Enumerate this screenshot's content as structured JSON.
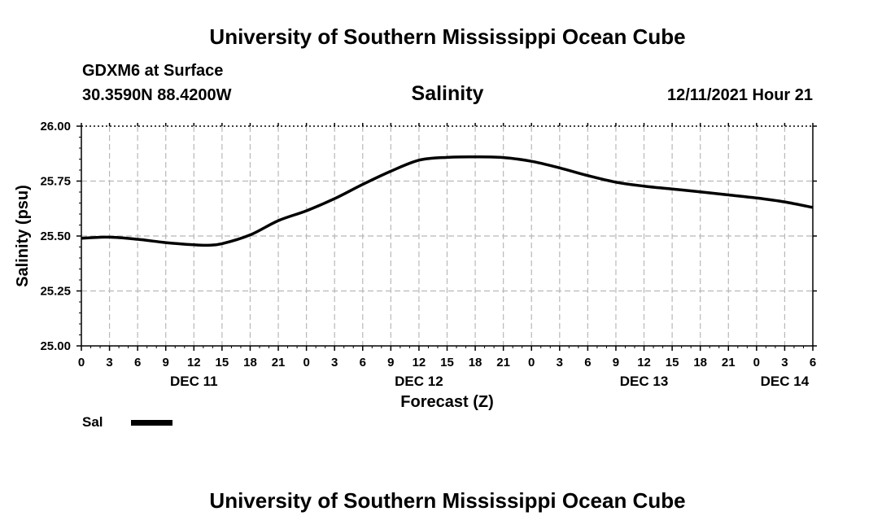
{
  "header": {
    "title_top": "University of Southern Mississippi Ocean Cube",
    "station": "GDXM6 at Surface",
    "coords": "30.3590N  88.4200W",
    "parameter": "Salinity",
    "run": "12/11/2021 Hour 21",
    "title_bottom": "University of Southern Mississippi Ocean Cube"
  },
  "legend": {
    "label": "Sal",
    "color": "#000000"
  },
  "chart_data": {
    "type": "line",
    "title": "Salinity",
    "xlabel": "Forecast (Z)",
    "ylabel": "Salinity (psu)",
    "ylim": [
      25.0,
      26.0
    ],
    "xlim": [
      0,
      78
    ],
    "grid": true,
    "yticks": [
      "25.00",
      "25.25",
      "25.50",
      "25.75",
      "26.00"
    ],
    "xtick_labels": [
      "0",
      "3",
      "6",
      "9",
      "12",
      "15",
      "18",
      "21",
      "0",
      "3",
      "6",
      "9",
      "12",
      "15",
      "18",
      "21",
      "0",
      "3",
      "6",
      "9",
      "12",
      "15",
      "18",
      "21",
      "0",
      "3",
      "6"
    ],
    "day_labels": [
      {
        "label": "DEC 11",
        "hour": 12
      },
      {
        "label": "DEC 12",
        "hour": 36
      },
      {
        "label": "DEC 13",
        "hour": 60
      },
      {
        "label": "DEC 14",
        "hour": 75
      }
    ],
    "series": [
      {
        "name": "Sal",
        "x": [
          0,
          3,
          6,
          9,
          12,
          13.5,
          15,
          18,
          21,
          24,
          27,
          30,
          33,
          36,
          39,
          42,
          45,
          48,
          51,
          54,
          57,
          60,
          63,
          66,
          69,
          72,
          75,
          78
        ],
        "values": [
          25.49,
          25.495,
          25.485,
          25.47,
          25.46,
          25.458,
          25.465,
          25.505,
          25.57,
          25.615,
          25.67,
          25.735,
          25.795,
          25.845,
          25.858,
          25.86,
          25.857,
          25.84,
          25.81,
          25.775,
          25.745,
          25.727,
          25.714,
          25.701,
          25.687,
          25.673,
          25.655,
          25.63
        ]
      }
    ]
  }
}
